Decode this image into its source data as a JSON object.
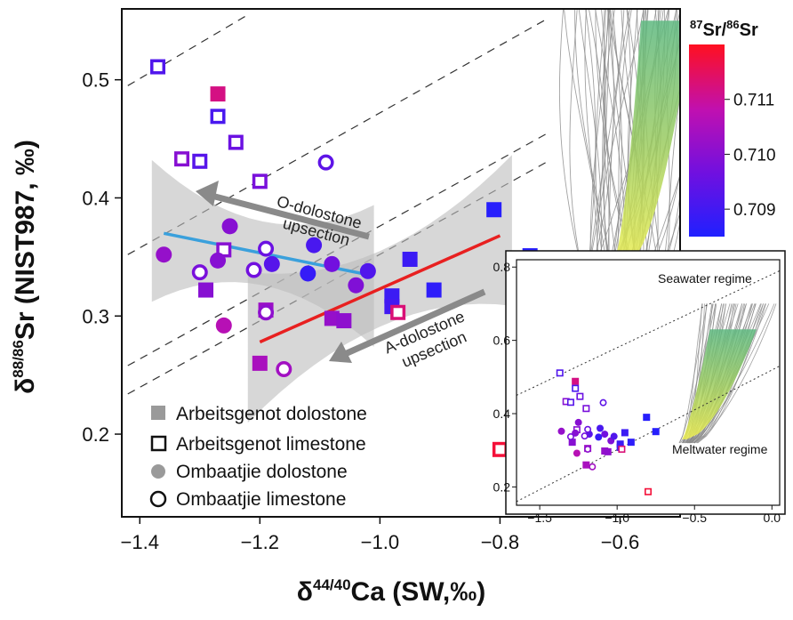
{
  "chart_data": [
    {
      "type": "scatter",
      "name": "main-plot",
      "xlabel": "δ44/40Ca (SW,‰)",
      "ylabel": "δ88/86Sr (NIST987, ‰)",
      "xlim": [
        -1.43,
        -0.5
      ],
      "ylim": [
        0.13,
        0.56
      ],
      "x_ticks": [
        -1.4,
        -1.2,
        -1.0,
        -0.8,
        -0.6
      ],
      "x_tick_labels": [
        "−1.4",
        "−1.2",
        "−1.0",
        "−0.8",
        "−0.6"
      ],
      "y_ticks": [
        0.2,
        0.3,
        0.4,
        0.5
      ],
      "y_tick_labels": [
        "0.2",
        "0.3",
        "0.4",
        "0.5"
      ],
      "series": [
        {
          "name": "Arbeitsgenot dolostone",
          "marker": "filled-square",
          "points": [
            {
              "x": -1.27,
              "y": 0.488,
              "sr": 0.7112
            },
            {
              "x": -1.29,
              "y": 0.322,
              "sr": 0.71
            },
            {
              "x": -1.2,
              "y": 0.26,
              "sr": 0.7105
            },
            {
              "x": -1.19,
              "y": 0.305,
              "sr": 0.7103
            },
            {
              "x": -1.08,
              "y": 0.298,
              "sr": 0.7102
            },
            {
              "x": -1.06,
              "y": 0.296,
              "sr": 0.7101
            },
            {
              "x": -0.98,
              "y": 0.317,
              "sr": 0.7089
            },
            {
              "x": -0.95,
              "y": 0.348,
              "sr": 0.7089
            },
            {
              "x": -0.91,
              "y": 0.322,
              "sr": 0.7087
            },
            {
              "x": -0.81,
              "y": 0.39,
              "sr": 0.7086
            },
            {
              "x": -0.75,
              "y": 0.351,
              "sr": 0.7086
            },
            {
              "x": -0.98,
              "y": 0.308,
              "sr": 0.709
            }
          ]
        },
        {
          "name": "Arbeitsgenot limestone",
          "marker": "open-square",
          "points": [
            {
              "x": -1.37,
              "y": 0.511,
              "sr": 0.7092
            },
            {
              "x": -1.27,
              "y": 0.469,
              "sr": 0.7091
            },
            {
              "x": -1.24,
              "y": 0.447,
              "sr": 0.7096
            },
            {
              "x": -1.33,
              "y": 0.433,
              "sr": 0.71
            },
            {
              "x": -1.3,
              "y": 0.431,
              "sr": 0.7093
            },
            {
              "x": -1.2,
              "y": 0.414,
              "sr": 0.7098
            },
            {
              "x": -1.26,
              "y": 0.356,
              "sr": 0.71
            },
            {
              "x": -0.97,
              "y": 0.303,
              "sr": 0.7113
            },
            {
              "x": -0.8,
              "y": 0.187,
              "sr": 0.7118
            }
          ]
        },
        {
          "name": "Ombaatjie dolostone",
          "marker": "filled-circle",
          "points": [
            {
              "x": -1.36,
              "y": 0.352,
              "sr": 0.7102
            },
            {
              "x": -1.25,
              "y": 0.376,
              "sr": 0.71
            },
            {
              "x": -1.27,
              "y": 0.347,
              "sr": 0.71
            },
            {
              "x": -1.18,
              "y": 0.344,
              "sr": 0.7093
            },
            {
              "x": -1.26,
              "y": 0.292,
              "sr": 0.7107
            },
            {
              "x": -1.11,
              "y": 0.36,
              "sr": 0.7091
            },
            {
              "x": -1.12,
              "y": 0.336,
              "sr": 0.7088
            },
            {
              "x": -1.08,
              "y": 0.344,
              "sr": 0.7097
            },
            {
              "x": -1.04,
              "y": 0.326,
              "sr": 0.7099
            },
            {
              "x": -1.02,
              "y": 0.338,
              "sr": 0.7092
            }
          ]
        },
        {
          "name": "Ombaatjie limestone",
          "marker": "open-circle",
          "points": [
            {
              "x": -1.09,
              "y": 0.43,
              "sr": 0.7094
            },
            {
              "x": -1.3,
              "y": 0.337,
              "sr": 0.7098
            },
            {
              "x": -1.19,
              "y": 0.357,
              "sr": 0.7096
            },
            {
              "x": -1.21,
              "y": 0.339,
              "sr": 0.7097
            },
            {
              "x": -1.19,
              "y": 0.303,
              "sr": 0.7101
            },
            {
              "x": -1.16,
              "y": 0.255,
              "sr": 0.7104
            }
          ]
        }
      ],
      "regressions": [
        {
          "name": "O-dolostone fit",
          "color": "#3aa0dc",
          "x": [
            -1.36,
            -1.03
          ],
          "y": [
            0.37,
            0.336
          ]
        },
        {
          "name": "A-dolostone fit",
          "color": "#e82020",
          "x": [
            -1.2,
            -0.8
          ],
          "y": [
            0.278,
            0.368
          ]
        }
      ],
      "reference_lines": [
        {
          "style": "dashed",
          "x": [
            -1.42,
            -1.22
          ],
          "y": [
            0.495,
            0.555
          ]
        },
        {
          "style": "dashed",
          "x": [
            -1.42,
            -0.72
          ],
          "y": [
            0.352,
            0.552
          ]
        },
        {
          "style": "dashed",
          "x": [
            -1.42,
            -0.72
          ],
          "y": [
            0.258,
            0.455
          ]
        },
        {
          "style": "dashed",
          "x": [
            -1.42,
            -0.72
          ],
          "y": [
            0.234,
            0.431
          ]
        }
      ],
      "annotations": [
        {
          "text": "O-dolostone",
          "text2": "upsection"
        },
        {
          "text": "A-dolostone",
          "text2": "upsection"
        }
      ],
      "legend": {
        "placement": "bottom-left",
        "entries": [
          {
            "label": "Arbeitsgenot dolostone",
            "marker": "filled-square"
          },
          {
            "label": "Arbeitsgenot limestone",
            "marker": "open-square"
          },
          {
            "label": "Ombaatjie dolostone",
            "marker": "filled-circle"
          },
          {
            "label": "Ombaatjie limestone",
            "marker": "open-circle"
          }
        ]
      },
      "model_fan": {
        "curves": 60,
        "color": "#8a8a8a",
        "band_colors": [
          "#f0f050",
          "#9ccc60",
          "#5db880"
        ]
      }
    },
    {
      "type": "scatter",
      "name": "inset-plot",
      "placement": "bottom-right",
      "xlim": [
        -1.65,
        0.05
      ],
      "ylim": [
        0.15,
        0.82
      ],
      "x_ticks": [
        -1.5,
        -1.0,
        -0.5,
        0.0
      ],
      "x_tick_labels": [
        "−1.5",
        "−1.0",
        "−0.5",
        "0.0"
      ],
      "y_ticks": [
        0.2,
        0.4,
        0.6,
        0.8
      ],
      "y_tick_labels": [
        "0.2",
        "0.4",
        "0.6",
        "0.8"
      ],
      "regimes": [
        "Seawater regime",
        "Meltwater regime"
      ],
      "reference_lines": [
        {
          "style": "dotted",
          "x": [
            -1.65,
            0.05
          ],
          "y": [
            0.45,
            0.79
          ]
        },
        {
          "style": "dotted",
          "x": [
            -1.65,
            0.05
          ],
          "y": [
            0.16,
            0.53
          ]
        }
      ]
    }
  ],
  "colorbar": {
    "title_sup": "87",
    "title_mid": "Sr/",
    "title_sup2": "86",
    "title_end": "Sr",
    "range": [
      0.7085,
      0.712
    ],
    "ticks": [
      0.709,
      0.71,
      0.711
    ],
    "tick_labels": [
      "0.709",
      "0.710",
      "0.711"
    ],
    "colors": [
      "#2020ff",
      "#7010e0",
      "#c010b0",
      "#ff1020"
    ]
  },
  "axis_titles": {
    "x_main": "δ",
    "x_sup": "44/40",
    "x_end": "Ca (SW,‰)",
    "y_main": "δ",
    "y_sup": "88/86",
    "y_end": "Sr (NIST987, ‰)"
  }
}
